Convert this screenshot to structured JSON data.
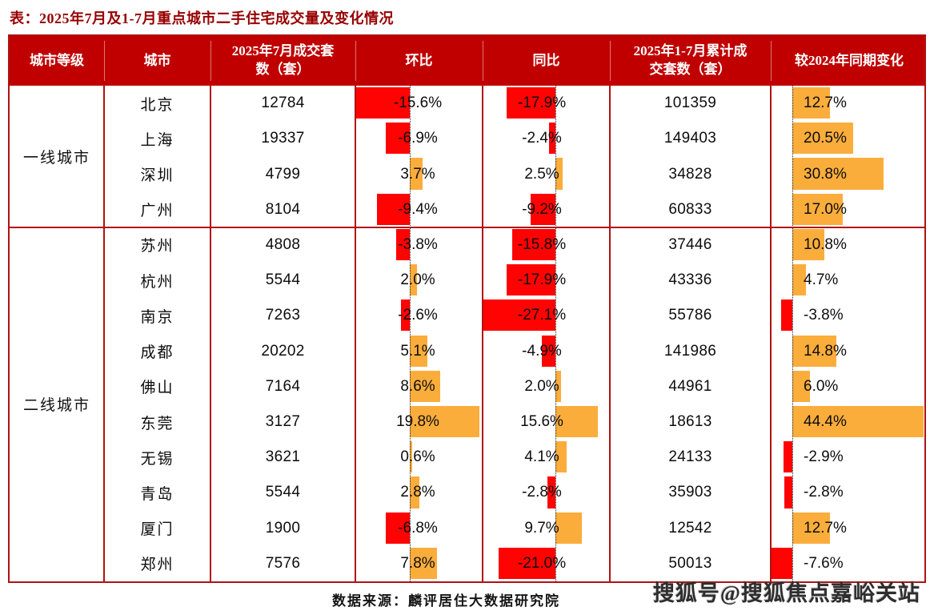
{
  "title": "表：2025年7月及1-7月重点城市二手住宅成交量及变化情况",
  "table": {
    "headers": [
      "城市等级",
      "城市",
      "2025年7月成交套\n数（套）",
      "环比",
      "同比",
      "2025年1-7月累计成\n交套数（套）",
      "较2024年同期变化"
    ],
    "groups": [
      {
        "tier": "一线城市",
        "rows": [
          {
            "city": "北京",
            "jul": "12784",
            "mom": "-15.6%",
            "yoy": "-17.9%",
            "cum": "101359",
            "chg": "12.7%"
          },
          {
            "city": "上海",
            "jul": "19337",
            "mom": "-6.9%",
            "yoy": "-2.4%",
            "cum": "149403",
            "chg": "20.5%"
          },
          {
            "city": "深圳",
            "jul": "4799",
            "mom": "3.7%",
            "yoy": "2.5%",
            "cum": "34828",
            "chg": "30.8%"
          },
          {
            "city": "广州",
            "jul": "8104",
            "mom": "-9.4%",
            "yoy": "-9.2%",
            "cum": "60833",
            "chg": "17.0%"
          }
        ]
      },
      {
        "tier": "二线城市",
        "rows": [
          {
            "city": "苏州",
            "jul": "4808",
            "mom": "-3.8%",
            "yoy": "-15.8%",
            "cum": "37446",
            "chg": "10.8%"
          },
          {
            "city": "杭州",
            "jul": "5544",
            "mom": "2.0%",
            "yoy": "-17.9%",
            "cum": "43336",
            "chg": "4.7%"
          },
          {
            "city": "南京",
            "jul": "7263",
            "mom": "-2.6%",
            "yoy": "-27.1%",
            "cum": "55786",
            "chg": "-3.8%"
          },
          {
            "city": "成都",
            "jul": "20202",
            "mom": "5.1%",
            "yoy": "-4.9%",
            "cum": "141986",
            "chg": "14.8%"
          },
          {
            "city": "佛山",
            "jul": "7164",
            "mom": "8.6%",
            "yoy": "2.0%",
            "cum": "44961",
            "chg": "6.0%"
          },
          {
            "city": "东莞",
            "jul": "3127",
            "mom": "19.8%",
            "yoy": "15.6%",
            "cum": "18613",
            "chg": "44.4%"
          },
          {
            "city": "无锡",
            "jul": "3621",
            "mom": "0.6%",
            "yoy": "4.1%",
            "cum": "24133",
            "chg": "-2.9%"
          },
          {
            "city": "青岛",
            "jul": "5544",
            "mom": "2.8%",
            "yoy": "-2.8%",
            "cum": "35903",
            "chg": "-2.8%"
          },
          {
            "city": "厦门",
            "jul": "1900",
            "mom": "-6.8%",
            "yoy": "9.7%",
            "cum": "12542",
            "chg": "12.7%"
          },
          {
            "city": "郑州",
            "jul": "7576",
            "mom": "7.8%",
            "yoy": "-21.0%",
            "cum": "50013",
            "chg": "-7.6%"
          }
        ]
      }
    ]
  },
  "footer": {
    "source": "数据来源：麟评居住大数据研究院",
    "watermark": "搜狐号@搜狐焦点嘉峪关站"
  },
  "colors": {
    "header_bg": "#c00000",
    "header_text": "#ffffff",
    "border": "#b01212",
    "bar_negative": "#ff0202",
    "bar_positive": "#fbad3c",
    "title_text": "#970000"
  },
  "chart_data": {
    "type": "table",
    "title": "2025年7月及1-7月重点城市二手住宅成交量及变化情况",
    "columns": [
      "城市等级",
      "城市",
      "2025年7月成交套数（套）",
      "环比(%)",
      "同比(%)",
      "2025年1-7月累计成交套数（套）",
      "较2024年同期变化(%)"
    ],
    "rows": [
      [
        "一线城市",
        "北京",
        12784,
        -15.6,
        -17.9,
        101359,
        12.7
      ],
      [
        "一线城市",
        "上海",
        19337,
        -6.9,
        -2.4,
        149403,
        20.5
      ],
      [
        "一线城市",
        "深圳",
        4799,
        3.7,
        2.5,
        34828,
        30.8
      ],
      [
        "一线城市",
        "广州",
        8104,
        -9.4,
        -9.2,
        60833,
        17.0
      ],
      [
        "二线城市",
        "苏州",
        4808,
        -3.8,
        -15.8,
        37446,
        10.8
      ],
      [
        "二线城市",
        "杭州",
        5544,
        2.0,
        -17.9,
        43336,
        4.7
      ],
      [
        "二线城市",
        "南京",
        7263,
        -2.6,
        -27.1,
        55786,
        -3.8
      ],
      [
        "二线城市",
        "成都",
        20202,
        5.1,
        -4.9,
        141986,
        14.8
      ],
      [
        "二线城市",
        "佛山",
        7164,
        8.6,
        2.0,
        44961,
        6.0
      ],
      [
        "二线城市",
        "东莞",
        3127,
        19.8,
        15.6,
        18613,
        44.4
      ],
      [
        "二线城市",
        "无锡",
        3621,
        0.6,
        4.1,
        24133,
        -2.9
      ],
      [
        "二线城市",
        "青岛",
        5544,
        2.8,
        -2.8,
        35903,
        -2.8
      ],
      [
        "二线城市",
        "厦门",
        1900,
        -6.8,
        9.7,
        12542,
        12.7
      ],
      [
        "二线城市",
        "郑州",
        7576,
        7.8,
        -21.0,
        50013,
        -7.6
      ]
    ],
    "bar_columns": {
      "环比": {
        "zero_line": "dotted",
        "negative_color": "#ff0202",
        "positive_color": "#fbad3c"
      },
      "同比": {
        "zero_line": "dotted",
        "negative_color": "#ff0202",
        "positive_color": "#fbad3c"
      },
      "较2024年同期变化": {
        "zero_line": "dotted",
        "negative_color": "#ff0202",
        "positive_color": "#fbad3c"
      }
    },
    "legend": "none",
    "grid": false
  }
}
